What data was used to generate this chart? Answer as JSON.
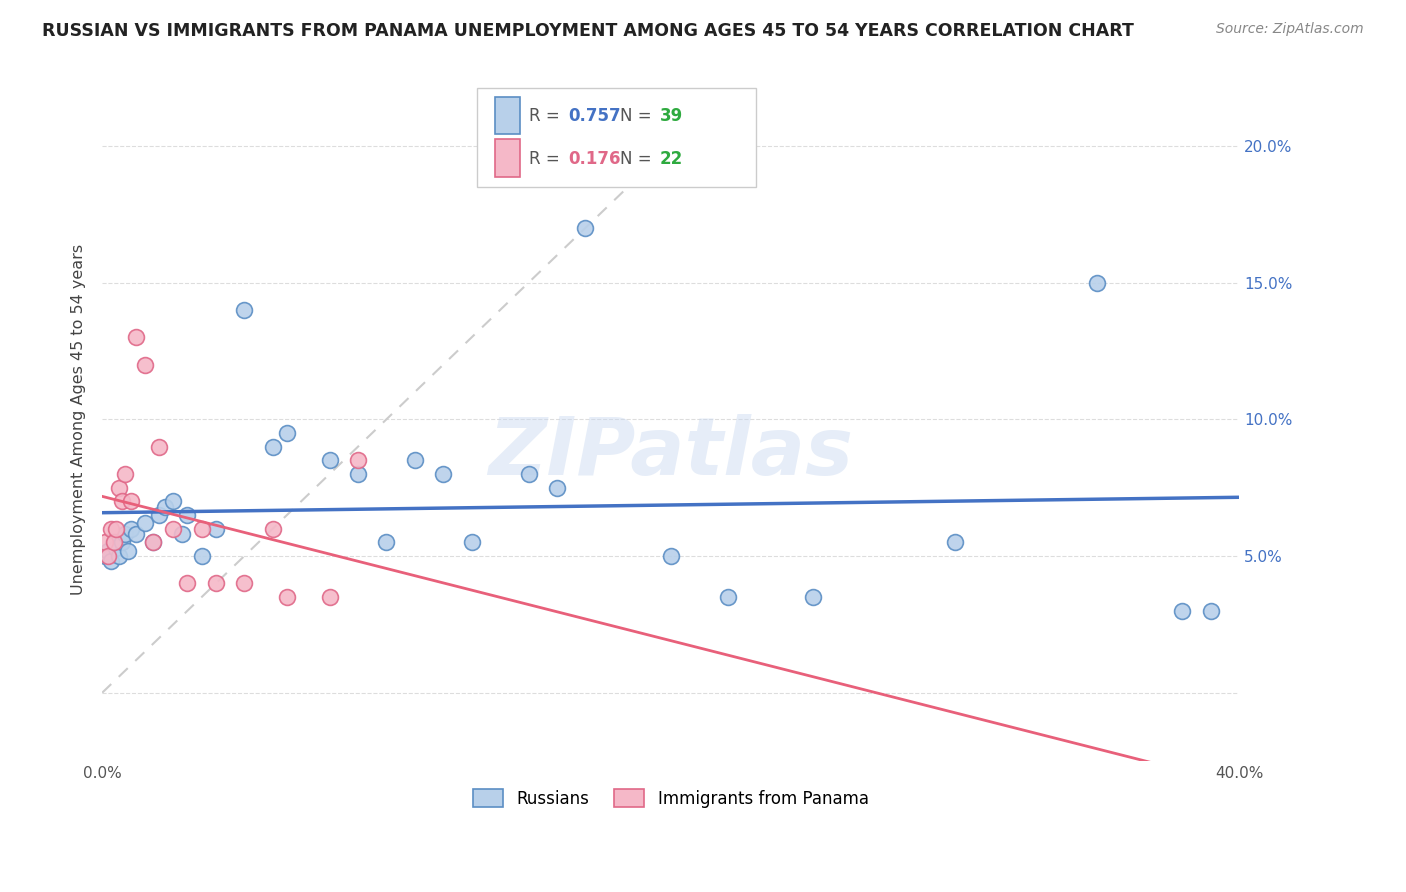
{
  "title": "RUSSIAN VS IMMIGRANTS FROM PANAMA UNEMPLOYMENT AMONG AGES 45 TO 54 YEARS CORRELATION CHART",
  "source": "Source: ZipAtlas.com",
  "ylabel": "Unemployment Among Ages 45 to 54 years",
  "xlim": [
    0.0,
    0.4
  ],
  "ylim": [
    -0.025,
    0.225
  ],
  "yticks": [
    0.0,
    0.05,
    0.1,
    0.15,
    0.2
  ],
  "ytick_labels": [
    "",
    "5.0%",
    "10.0%",
    "15.0%",
    "20.0%"
  ],
  "xticks": [
    0.0,
    0.05,
    0.1,
    0.15,
    0.2,
    0.25,
    0.3,
    0.35,
    0.4
  ],
  "xtick_labels": [
    "0.0%",
    "",
    "",
    "",
    "",
    "",
    "",
    "",
    "40.0%"
  ],
  "russians_x": [
    0.001,
    0.002,
    0.003,
    0.004,
    0.005,
    0.006,
    0.007,
    0.008,
    0.009,
    0.01,
    0.012,
    0.015,
    0.018,
    0.02,
    0.022,
    0.025,
    0.028,
    0.03,
    0.035,
    0.04,
    0.05,
    0.06,
    0.065,
    0.08,
    0.09,
    0.1,
    0.11,
    0.12,
    0.13,
    0.15,
    0.16,
    0.17,
    0.2,
    0.22,
    0.25,
    0.3,
    0.35,
    0.38,
    0.39
  ],
  "russians_y": [
    0.05,
    0.052,
    0.048,
    0.055,
    0.053,
    0.05,
    0.055,
    0.058,
    0.052,
    0.06,
    0.058,
    0.062,
    0.055,
    0.065,
    0.068,
    0.07,
    0.058,
    0.065,
    0.05,
    0.06,
    0.14,
    0.09,
    0.095,
    0.085,
    0.08,
    0.055,
    0.085,
    0.08,
    0.055,
    0.08,
    0.075,
    0.17,
    0.05,
    0.035,
    0.035,
    0.055,
    0.15,
    0.03,
    0.03
  ],
  "panama_x": [
    0.001,
    0.002,
    0.003,
    0.004,
    0.005,
    0.006,
    0.007,
    0.008,
    0.01,
    0.012,
    0.015,
    0.018,
    0.02,
    0.025,
    0.03,
    0.035,
    0.04,
    0.05,
    0.06,
    0.065,
    0.08,
    0.09
  ],
  "panama_y": [
    0.055,
    0.05,
    0.06,
    0.055,
    0.06,
    0.075,
    0.07,
    0.08,
    0.07,
    0.13,
    0.12,
    0.055,
    0.09,
    0.06,
    0.04,
    0.06,
    0.04,
    0.04,
    0.06,
    0.035,
    0.035,
    0.085
  ],
  "russian_R": 0.757,
  "russian_N": 39,
  "panama_R": 0.176,
  "panama_N": 22,
  "russian_color": "#b8d0ea",
  "russian_edge_color": "#5b8ec4",
  "panama_color": "#f5b8c8",
  "panama_edge_color": "#e06888",
  "russian_line_color": "#4472c4",
  "panama_line_color": "#e8607a",
  "watermark": "ZIPatlas",
  "marker_size": 130,
  "marker_linewidth": 1.2
}
